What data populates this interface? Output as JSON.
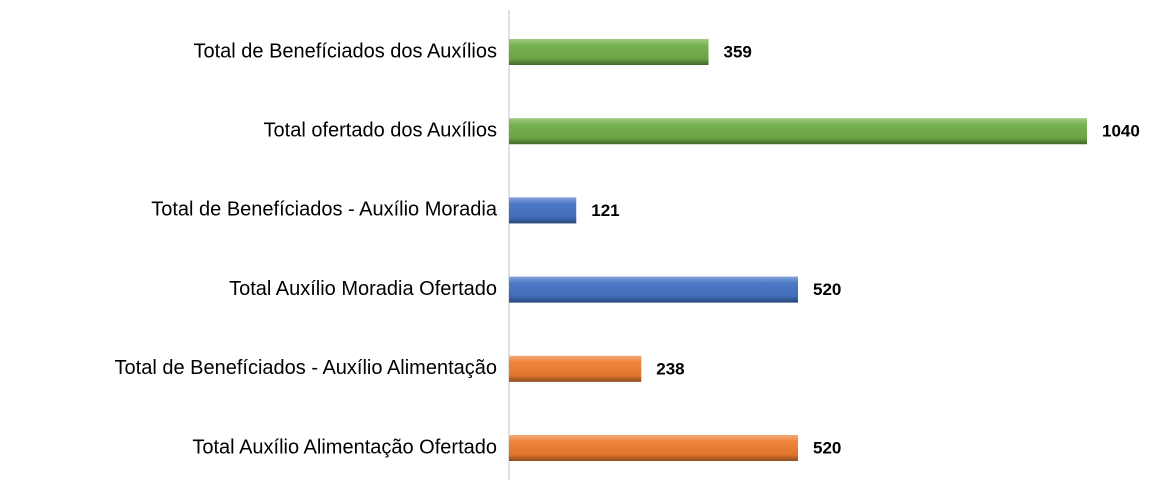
{
  "chart_data": {
    "type": "bar",
    "orientation": "horizontal",
    "categories": [
      "Total de Benefíciados dos Auxílios",
      "Total ofertado dos Auxílios",
      "Total de Benefíciados - Auxílio Moradia",
      "Total Auxílio Moradia Ofertado",
      "Total de Benefíciados - Auxílio Alimentação",
      "Total Auxílio Alimentação Ofertado"
    ],
    "values": [
      359,
      1040,
      121,
      520,
      238,
      520
    ],
    "colors": [
      "#70ad47",
      "#70ad47",
      "#4472c4",
      "#4472c4",
      "#ed7d31",
      "#ed7d31"
    ]
  }
}
